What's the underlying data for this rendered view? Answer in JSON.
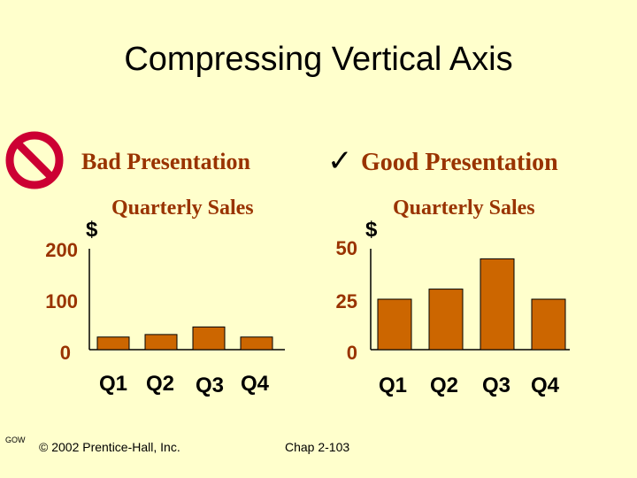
{
  "slide": {
    "title": "Compressing Vertical Axis",
    "bad_label": "Bad Presentation",
    "good_label": "Good Presentation",
    "check_glyph": "✓",
    "footer_left": "GOW",
    "footer_copyright": "© 2002 Prentice-Hall, Inc.",
    "footer_chapter": "Chap 2-103",
    "bad_icon": "prohibited-icon",
    "colors": {
      "background": "#ffffcc",
      "bar": "#cc6600",
      "text_accent": "#993300",
      "prohibit": "#cc0033"
    }
  },
  "chart_data": [
    {
      "type": "bar",
      "title": "Quarterly Sales",
      "ylabel": "$",
      "categories": [
        "Q1",
        "Q2",
        "Q3",
        "Q4"
      ],
      "values": [
        25,
        30,
        45,
        25
      ],
      "ylim": [
        0,
        200
      ],
      "yticks": [
        "0",
        "100",
        "200"
      ]
    },
    {
      "type": "bar",
      "title": "Quarterly Sales",
      "ylabel": "$",
      "categories": [
        "Q1",
        "Q2",
        "Q3",
        "Q4"
      ],
      "values": [
        25,
        30,
        45,
        25
      ],
      "ylim": [
        0,
        50
      ],
      "yticks": [
        "0",
        "25",
        "50"
      ]
    }
  ]
}
